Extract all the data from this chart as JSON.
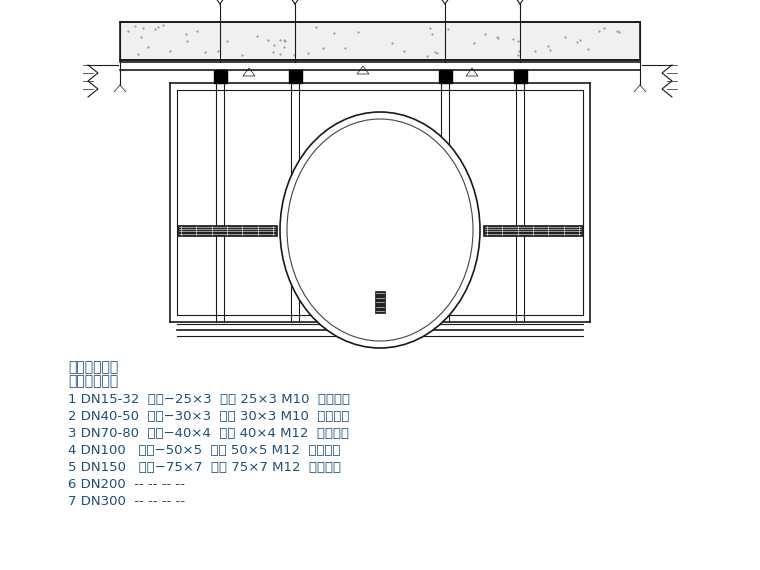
{
  "bg_color": "#ffffff",
  "line_color": "#1a1a1a",
  "text_color_blue": "#1F4E79",
  "header_line1": "序号公称直径",
  "header_line2": "规格生根方式",
  "rows": [
    "1 DN15-32  角钢−25×3  扁钢 25×3 M10  膨胀螺栓",
    "2 DN40-50  角钢−30×3  扁钢 30×3 M10  膨胀螺栓",
    "3 DN70-80  角钢−40×4  扁钢 40×4 M12  膨胀螺栓",
    "4 DN100   角钢−50×5  扁钢 50×5 M12  膨胀螺栓",
    "5 DN150   角钢−75×7  扁钢 75×7 M12  膨胀螺栓",
    "6 DN200  -- -- -- --",
    "7 DN300  -- -- -- --"
  ],
  "fig_width": 7.6,
  "fig_height": 5.7,
  "dpi": 100
}
